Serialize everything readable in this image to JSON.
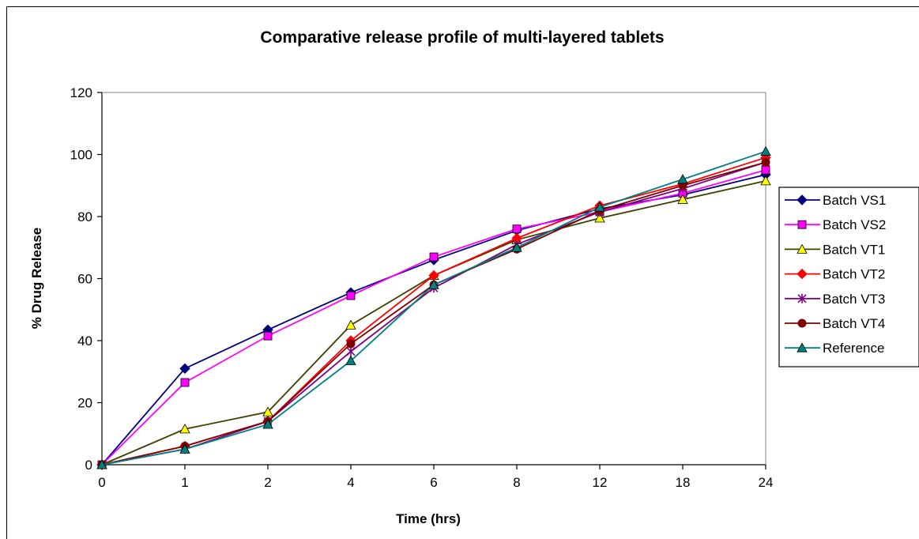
{
  "chart_data": {
    "type": "line",
    "title": "Comparative release profile of multi-layered tablets",
    "xlabel": "Time (hrs)",
    "ylabel": "% Drug Release",
    "categories": [
      "0",
      "1",
      "2",
      "4",
      "6",
      "8",
      "12",
      "18",
      "24"
    ],
    "ylim": [
      0,
      120
    ],
    "yticks": [
      0,
      20,
      40,
      60,
      80,
      100,
      120
    ],
    "grid": false,
    "legend": "right",
    "series": [
      {
        "name": "Batch VS1",
        "color": "#00007f",
        "marker": "diamond",
        "values": [
          0,
          31,
          43.5,
          55.5,
          66,
          75.5,
          82.5,
          87,
          93.5
        ]
      },
      {
        "name": "Batch VS2",
        "color": "#ff00ff",
        "marker": "square",
        "values": [
          0,
          26.5,
          41.5,
          54.5,
          67,
          76,
          81.5,
          87.5,
          95
        ]
      },
      {
        "name": "Batch VT1",
        "color": "#3f3f00",
        "marker": "triangle",
        "values": [
          0,
          11.5,
          17,
          45,
          61,
          72.5,
          79.5,
          85.5,
          91.5
        ]
      },
      {
        "name": "Batch VT2",
        "color": "#ff0000",
        "marker": "diamond",
        "values": [
          0,
          6,
          14,
          40,
          61,
          73,
          83.5,
          90.5,
          99
        ]
      },
      {
        "name": "Batch VT3",
        "color": "#7f007f",
        "marker": "star",
        "values": [
          0,
          5,
          14,
          36.5,
          57,
          71,
          81.5,
          89,
          97.5
        ]
      },
      {
        "name": "Batch VT4",
        "color": "#7f0000",
        "marker": "circle",
        "values": [
          0,
          6,
          14,
          39,
          58,
          69.5,
          82,
          90,
          97.5
        ]
      },
      {
        "name": "Reference",
        "color": "#008080",
        "marker": "triangle",
        "values": [
          0,
          5,
          13,
          33.5,
          58,
          70,
          83,
          92,
          101
        ]
      }
    ]
  }
}
